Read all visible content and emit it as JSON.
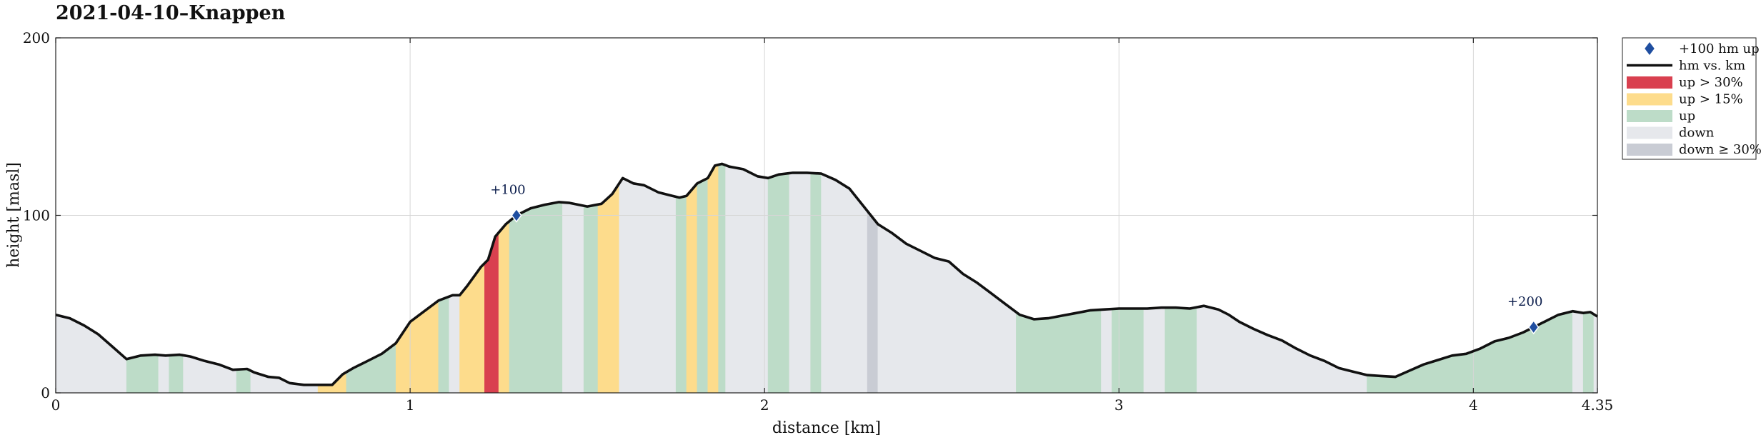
{
  "chart_data": {
    "type": "area",
    "title": "2021-04-10–Knappen",
    "xlabel": "distance [km]",
    "ylabel": "height [masl]",
    "xlim": [
      0,
      4.35
    ],
    "ylim": [
      0,
      200
    ],
    "xticks": [
      {
        "value": 0,
        "label": "0"
      },
      {
        "value": 1,
        "label": "1"
      },
      {
        "value": 2,
        "label": "2"
      },
      {
        "value": 3,
        "label": "3"
      },
      {
        "value": 4,
        "label": "4"
      },
      {
        "value": 4.35,
        "label": "4.35"
      }
    ],
    "yticks": [
      {
        "value": 0,
        "label": "0"
      },
      {
        "value": 100,
        "label": "100"
      },
      {
        "value": 200,
        "label": "200"
      }
    ],
    "grid": true,
    "legend_position": "outside-right-top",
    "colors": {
      "profile": "#111111",
      "up30": "#d9404f",
      "up15": "#fddc8c",
      "up": "#bddcc8",
      "down": "#e6e8ec",
      "down30": "#c9ccd4",
      "marker": "#1f4ea0",
      "grid": "#d6d6d6"
    },
    "legend": [
      {
        "key": "marker",
        "label": "+100 hm up"
      },
      {
        "key": "profile",
        "label": "hm vs. km"
      },
      {
        "key": "up30",
        "label": "up > 30%"
      },
      {
        "key": "up15",
        "label": "up > 15%"
      },
      {
        "key": "up",
        "label": "up"
      },
      {
        "key": "down",
        "label": "down"
      },
      {
        "key": "down30",
        "label": "down ≥ 30%"
      }
    ],
    "markers": [
      {
        "x": 1.3,
        "y": 100,
        "label": "+100"
      },
      {
        "x": 4.17,
        "y": 37,
        "label": "+200"
      }
    ],
    "profile": [
      [
        0.0,
        44
      ],
      [
        0.04,
        42
      ],
      [
        0.08,
        38
      ],
      [
        0.12,
        33
      ],
      [
        0.16,
        26
      ],
      [
        0.2,
        19
      ],
      [
        0.24,
        21
      ],
      [
        0.28,
        21.5
      ],
      [
        0.31,
        21
      ],
      [
        0.35,
        21.5
      ],
      [
        0.38,
        20.5
      ],
      [
        0.42,
        18
      ],
      [
        0.46,
        16
      ],
      [
        0.5,
        13
      ],
      [
        0.54,
        13.5
      ],
      [
        0.56,
        11.5
      ],
      [
        0.6,
        9
      ],
      [
        0.63,
        8.5
      ],
      [
        0.66,
        5.5
      ],
      [
        0.7,
        4.5
      ],
      [
        0.74,
        4.5
      ],
      [
        0.78,
        4.5
      ],
      [
        0.81,
        10.5
      ],
      [
        0.84,
        14
      ],
      [
        0.88,
        18
      ],
      [
        0.92,
        22
      ],
      [
        0.96,
        28
      ],
      [
        1.0,
        40
      ],
      [
        1.04,
        46
      ],
      [
        1.08,
        52
      ],
      [
        1.12,
        55
      ],
      [
        1.14,
        55
      ],
      [
        1.16,
        60
      ],
      [
        1.2,
        71
      ],
      [
        1.22,
        75
      ],
      [
        1.24,
        88
      ],
      [
        1.27,
        95
      ],
      [
        1.3,
        100
      ],
      [
        1.34,
        104
      ],
      [
        1.38,
        106
      ],
      [
        1.42,
        107.5
      ],
      [
        1.45,
        107
      ],
      [
        1.5,
        105
      ],
      [
        1.54,
        106.5
      ],
      [
        1.57,
        112
      ],
      [
        1.6,
        121
      ],
      [
        1.63,
        118
      ],
      [
        1.66,
        117
      ],
      [
        1.7,
        113
      ],
      [
        1.74,
        111
      ],
      [
        1.76,
        110
      ],
      [
        1.78,
        111
      ],
      [
        1.81,
        118
      ],
      [
        1.84,
        121
      ],
      [
        1.86,
        128
      ],
      [
        1.88,
        129
      ],
      [
        1.9,
        127.5
      ],
      [
        1.94,
        126
      ],
      [
        1.98,
        122
      ],
      [
        2.01,
        121
      ],
      [
        2.04,
        123
      ],
      [
        2.08,
        124
      ],
      [
        2.12,
        124
      ],
      [
        2.16,
        123.5
      ],
      [
        2.2,
        120
      ],
      [
        2.24,
        115
      ],
      [
        2.28,
        105
      ],
      [
        2.32,
        95
      ],
      [
        2.36,
        90
      ],
      [
        2.4,
        84
      ],
      [
        2.44,
        80
      ],
      [
        2.48,
        76
      ],
      [
        2.52,
        74
      ],
      [
        2.56,
        67
      ],
      [
        2.6,
        62
      ],
      [
        2.64,
        56
      ],
      [
        2.68,
        50
      ],
      [
        2.72,
        44
      ],
      [
        2.76,
        41.5
      ],
      [
        2.8,
        42
      ],
      [
        2.84,
        43.5
      ],
      [
        2.88,
        45
      ],
      [
        2.92,
        46.5
      ],
      [
        2.96,
        47
      ],
      [
        3.0,
        47.5
      ],
      [
        3.04,
        47.5
      ],
      [
        3.08,
        47.5
      ],
      [
        3.12,
        48
      ],
      [
        3.16,
        48
      ],
      [
        3.2,
        47.5
      ],
      [
        3.24,
        49
      ],
      [
        3.28,
        47
      ],
      [
        3.31,
        44
      ],
      [
        3.34,
        40
      ],
      [
        3.38,
        36
      ],
      [
        3.42,
        32.5
      ],
      [
        3.46,
        29.5
      ],
      [
        3.5,
        25
      ],
      [
        3.54,
        21
      ],
      [
        3.58,
        18
      ],
      [
        3.62,
        14
      ],
      [
        3.66,
        12
      ],
      [
        3.7,
        10
      ],
      [
        3.74,
        9.5
      ],
      [
        3.78,
        9
      ],
      [
        3.82,
        12.5
      ],
      [
        3.86,
        16
      ],
      [
        3.9,
        18.5
      ],
      [
        3.94,
        21
      ],
      [
        3.98,
        22
      ],
      [
        4.02,
        25
      ],
      [
        4.06,
        29
      ],
      [
        4.1,
        31
      ],
      [
        4.14,
        34
      ],
      [
        4.17,
        37
      ],
      [
        4.2,
        40
      ],
      [
        4.24,
        44
      ],
      [
        4.28,
        46
      ],
      [
        4.31,
        45
      ],
      [
        4.33,
        45.5
      ],
      [
        4.35,
        43
      ]
    ],
    "segments": [
      [
        0.0,
        0.2,
        "down"
      ],
      [
        0.2,
        0.29,
        "up"
      ],
      [
        0.29,
        0.32,
        "down"
      ],
      [
        0.32,
        0.36,
        "up"
      ],
      [
        0.36,
        0.51,
        "down"
      ],
      [
        0.51,
        0.55,
        "up"
      ],
      [
        0.55,
        0.74,
        "down"
      ],
      [
        0.74,
        0.82,
        "up15"
      ],
      [
        0.82,
        0.96,
        "up"
      ],
      [
        0.96,
        1.08,
        "up15"
      ],
      [
        1.08,
        1.11,
        "up"
      ],
      [
        1.11,
        1.14,
        "down"
      ],
      [
        1.14,
        1.21,
        "up15"
      ],
      [
        1.21,
        1.25,
        "up30"
      ],
      [
        1.25,
        1.28,
        "up15"
      ],
      [
        1.28,
        1.43,
        "up"
      ],
      [
        1.43,
        1.49,
        "down"
      ],
      [
        1.49,
        1.53,
        "up"
      ],
      [
        1.53,
        1.59,
        "up15"
      ],
      [
        1.59,
        1.75,
        "down"
      ],
      [
        1.75,
        1.78,
        "up"
      ],
      [
        1.78,
        1.81,
        "up15"
      ],
      [
        1.81,
        1.84,
        "up"
      ],
      [
        1.84,
        1.87,
        "up15"
      ],
      [
        1.87,
        1.89,
        "up"
      ],
      [
        1.89,
        2.01,
        "down"
      ],
      [
        2.01,
        2.07,
        "up"
      ],
      [
        2.07,
        2.13,
        "down"
      ],
      [
        2.13,
        2.16,
        "up"
      ],
      [
        2.16,
        2.29,
        "down"
      ],
      [
        2.29,
        2.32,
        "down30"
      ],
      [
        2.32,
        2.71,
        "down"
      ],
      [
        2.71,
        2.95,
        "up"
      ],
      [
        2.95,
        2.98,
        "down"
      ],
      [
        2.98,
        3.07,
        "up"
      ],
      [
        3.07,
        3.13,
        "down"
      ],
      [
        3.13,
        3.22,
        "up"
      ],
      [
        3.22,
        3.7,
        "down"
      ],
      [
        3.7,
        4.28,
        "up"
      ],
      [
        4.28,
        4.31,
        "down"
      ],
      [
        4.31,
        4.34,
        "up"
      ],
      [
        4.34,
        4.35,
        "down"
      ]
    ]
  }
}
